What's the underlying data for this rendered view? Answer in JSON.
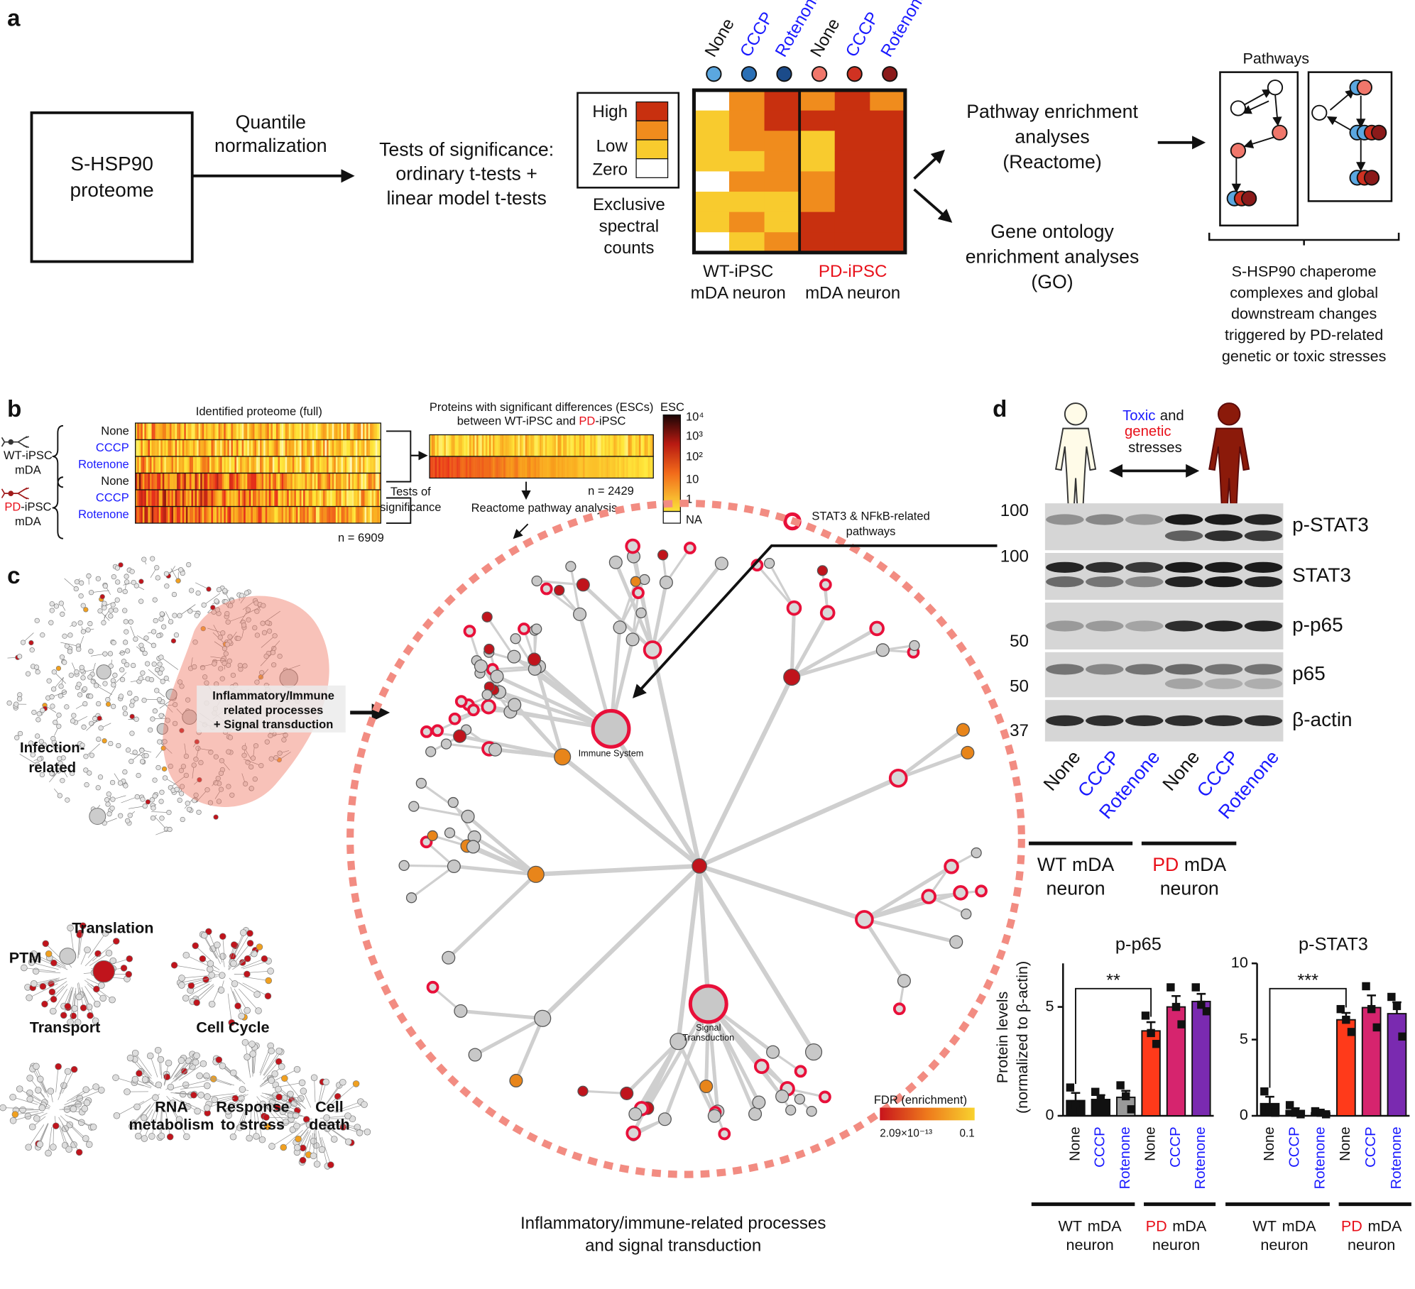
{
  "panel_a": {
    "label": "a",
    "source": [
      "S-HSP90",
      "proteome"
    ],
    "normalization": [
      "Quantile",
      "normalization"
    ],
    "tests": [
      "Tests of significance:",
      "ordinary t-tests +",
      "linear model t-tests"
    ],
    "legend_levels": [
      "High",
      "Low",
      "Zero"
    ],
    "level_colors": [
      "#ffffff",
      "#f8cb2e",
      "#f08c1d",
      "#c8300f"
    ],
    "legend_caption": [
      "Exclusive",
      "spectral",
      "counts"
    ],
    "conditions": [
      "None",
      "CCCP",
      "Rotenone",
      "None",
      "CCCP",
      "Rotenone"
    ],
    "condition_colors": [
      "#5ba7e0",
      "#2a6fb5",
      "#1b4b8a",
      "#f0776b",
      "#d03222",
      "#8b1a1a"
    ],
    "heatmap": [
      [
        0,
        2,
        3,
        2,
        3,
        2
      ],
      [
        1,
        2,
        3,
        3,
        3,
        3
      ],
      [
        1,
        2,
        2,
        1,
        3,
        3
      ],
      [
        1,
        1,
        2,
        1,
        3,
        3
      ],
      [
        0,
        2,
        2,
        2,
        3,
        3
      ],
      [
        1,
        1,
        1,
        2,
        3,
        3
      ],
      [
        1,
        2,
        1,
        3,
        3,
        3
      ],
      [
        0,
        1,
        2,
        3,
        3,
        3
      ]
    ],
    "groups": [
      {
        "name": "WT-iPSC",
        "line2": "mDA neuron"
      },
      {
        "name": "PD-iPSC",
        "line2": "mDA neuron"
      }
    ],
    "pathway_analysis": [
      "Pathway enrichment",
      "analyses",
      "(Reactome)"
    ],
    "go_analysis": [
      "Gene ontology",
      "enrichment analyses",
      "(GO)"
    ],
    "pathways_title": "Pathways",
    "summary": [
      "S-HSP90 chaperome",
      "complexes and global",
      "downstream changes",
      "triggered by PD-related",
      "genetic or toxic stresses"
    ]
  },
  "panel_b": {
    "label": "b",
    "full_title": "Identified proteome (full)",
    "groups": [
      {
        "prefix": "WT",
        "rest": "-iPSC",
        "line2": "mDA"
      },
      {
        "prefix": "PD",
        "rest": "-iPSC",
        "line2": "mDA"
      }
    ],
    "rows": [
      "None",
      "CCCP",
      "Rotenone",
      "None",
      "CCCP",
      "Rotenone"
    ],
    "n_full": "n = 6909",
    "tests": [
      "Tests of",
      "significance"
    ],
    "sig_title": [
      "Proteins with significant differences (ESCs)",
      "between WT-iPSC and ",
      "PD",
      "-iPSC"
    ],
    "n_sig": "n = 2429",
    "reactome": "Reactome pathway analysis",
    "esc_title": "ESC",
    "esc_labels": [
      "10⁴",
      "10³",
      "10²",
      "10",
      "1",
      "NA"
    ]
  },
  "panel_c": {
    "label": "c",
    "legend": [
      "STAT3 & NFkB-related",
      "pathways"
    ],
    "focus": [
      "Inflammatory/Immune",
      "related processes",
      "+ Signal transduction"
    ],
    "infection": [
      "Infection-",
      "related"
    ],
    "clusters": [
      [
        "Translation"
      ],
      [
        "PTM"
      ],
      [
        "Transport"
      ],
      [
        "Cell Cycle"
      ],
      [
        "RNA",
        "metabolism"
      ],
      [
        "Response",
        "to stress"
      ],
      [
        "Cell",
        "death"
      ]
    ],
    "immune_hub": "Immune System",
    "signal_hub": [
      "Signal",
      "Transduction"
    ],
    "fdr_title": "FDR (enrichment)",
    "fdr_min": "2.09×10⁻¹³",
    "fdr_max": "0.1",
    "caption": [
      "Inflammatory/immune-related processes",
      "and signal transduction"
    ]
  },
  "panel_d": {
    "label": "d",
    "stress": {
      "toxic": "Toxic",
      "and": "and",
      "genetic": "genetic",
      "stresses": "stresses"
    },
    "markers": [
      100,
      100,
      50,
      50,
      37
    ],
    "blots": [
      "p-STAT3",
      "STAT3",
      "p-p65",
      "p65",
      "β-actin"
    ],
    "lanes": [
      "None",
      "CCCP",
      "Rotenone",
      "None",
      "CCCP",
      "Rotenone"
    ],
    "groups": [
      {
        "prefix": "WT",
        "rest": "mDA",
        "line2": "neuron"
      },
      {
        "prefix": "PD",
        "rest": "mDA",
        "line2": "neuron"
      }
    ],
    "ylabel": [
      "Protein levels",
      "(normalized to β-actin)"
    ],
    "charts": [
      {
        "type": "bar",
        "title": "p-p65",
        "ylim": [
          0,
          7
        ],
        "yticks": [
          0,
          5
        ],
        "categories": [
          "None",
          "CCCP",
          "Rotenone",
          "None",
          "CCCP",
          "Rotenone"
        ],
        "values": [
          0.7,
          0.75,
          0.85,
          3.9,
          5.0,
          5.25
        ],
        "errors": [
          0.35,
          0.2,
          0.3,
          0.4,
          0.5,
          0.35
        ],
        "points": [
          [
            1.3,
            0.5,
            0.2
          ],
          [
            1.1,
            0.8,
            0.35
          ],
          [
            1.4,
            0.9,
            0.3
          ],
          [
            4.6,
            3.8,
            3.3
          ],
          [
            5.9,
            5.0,
            4.2
          ],
          [
            5.9,
            5.1,
            4.8
          ]
        ],
        "colors": [
          "#111111",
          "#111111",
          "#9a9a9a",
          "#ff3a1a",
          "#d6246e",
          "#7a2ab0"
        ],
        "significance": "**",
        "groups": [
          {
            "prefix": "WT",
            "rest": "mDA",
            "line2": "neuron"
          },
          {
            "prefix": "PD",
            "rest": "mDA",
            "line2": "neuron"
          }
        ]
      },
      {
        "type": "bar",
        "title": "p-STAT3",
        "ylim": [
          0,
          10
        ],
        "yticks": [
          0,
          5,
          10
        ],
        "categories": [
          "None",
          "CCCP",
          "Rotenone",
          "None",
          "CCCP",
          "Rotenone"
        ],
        "values": [
          0.8,
          0.35,
          0.2,
          6.3,
          7.1,
          6.7
        ],
        "errors": [
          0.45,
          0.15,
          0.1,
          0.45,
          0.8,
          0.75
        ],
        "points": [
          [
            1.6,
            0.5,
            0.2
          ],
          [
            0.7,
            0.2,
            0.1
          ],
          [
            0.3,
            0.2,
            0.1
          ],
          [
            7.0,
            6.3,
            5.5
          ],
          [
            8.5,
            7.0,
            5.8
          ],
          [
            7.8,
            7.2,
            5.2
          ]
        ],
        "colors": [
          "#111111",
          "#111111",
          "#9a9a9a",
          "#ff3a1a",
          "#d6246e",
          "#7a2ab0"
        ],
        "significance": "***",
        "groups": [
          {
            "prefix": "WT",
            "rest": "mDA",
            "line2": "neuron"
          },
          {
            "prefix": "PD",
            "rest": "mDA",
            "line2": "neuron"
          }
        ]
      }
    ]
  }
}
